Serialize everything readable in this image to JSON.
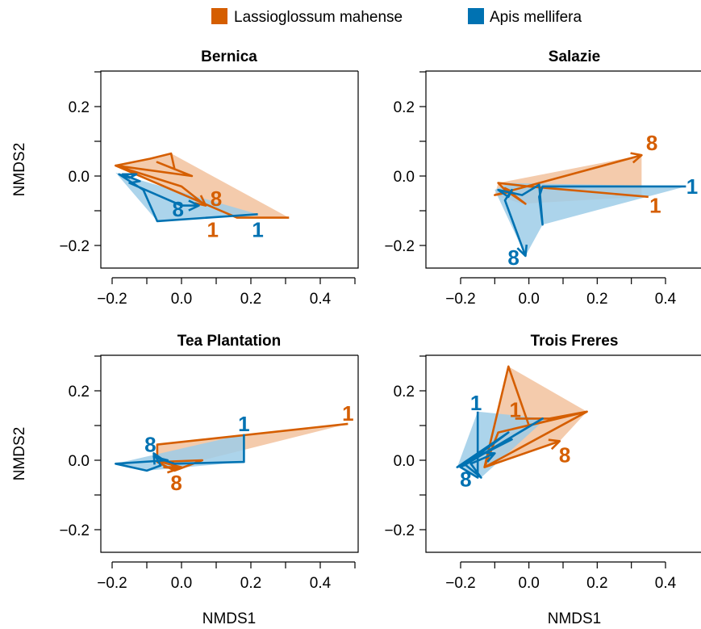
{
  "colors": {
    "lassioglossum": "#D55E00",
    "apis": "#0072B2",
    "lassioglossum_fill": "#F2C29E",
    "apis_fill": "#9ECDE8"
  },
  "legend": [
    {
      "name": "Lassioglossum mahense",
      "color_key": "lassioglossum"
    },
    {
      "name": "Apis mellifera",
      "color_key": "apis"
    }
  ],
  "chart_data": [
    {
      "type": "line",
      "title": "Bernica",
      "xlabel": "",
      "ylabel": "NMDS2",
      "xlim": [
        -0.22,
        0.48
      ],
      "ylim": [
        -0.27,
        0.31
      ],
      "xticks": [
        "-0.2",
        "0.0",
        "0.2",
        "0.4"
      ],
      "yticks": [
        "-0.2",
        "0.0",
        "0.2"
      ],
      "series": [
        {
          "color_key": "lassioglossum",
          "hull": [
            [
              -0.19,
              0.03
            ],
            [
              -0.03,
              0.065
            ],
            [
              0.31,
              -0.12
            ],
            [
              0.16,
              -0.12
            ]
          ],
          "path": [
            [
              0.31,
              -0.12
            ],
            [
              0.16,
              -0.12
            ],
            [
              -0.19,
              0.03
            ],
            [
              -0.09,
              0.05
            ],
            [
              -0.03,
              0.065
            ],
            [
              -0.02,
              0.02
            ],
            [
              -0.07,
              0.04
            ],
            [
              0.03,
              0.0
            ],
            [
              -0.19,
              0.03
            ],
            [
              0.0,
              -0.03
            ],
            [
              0.07,
              -0.085
            ]
          ],
          "labels": [
            {
              "text": "1",
              "x": 0.09,
              "y": -0.155
            },
            {
              "text": "8",
              "x": 0.1,
              "y": -0.065
            }
          ]
        },
        {
          "color_key": "apis",
          "hull": [
            [
              -0.19,
              0.01
            ],
            [
              -0.16,
              0.0
            ],
            [
              0.22,
              -0.11
            ],
            [
              -0.07,
              -0.13
            ]
          ],
          "path": [
            [
              0.22,
              -0.11
            ],
            [
              -0.07,
              -0.13
            ],
            [
              -0.11,
              -0.04
            ],
            [
              -0.18,
              0.005
            ],
            [
              -0.15,
              -0.005
            ],
            [
              -0.13,
              0.005
            ],
            [
              -0.17,
              0.005
            ],
            [
              -0.12,
              -0.015
            ],
            [
              -0.15,
              -0.02
            ],
            [
              0.0,
              -0.085
            ],
            [
              0.05,
              -0.085
            ]
          ],
          "labels": [
            {
              "text": "1",
              "x": 0.22,
              "y": -0.155
            },
            {
              "text": "8",
              "x": -0.01,
              "y": -0.095
            }
          ]
        }
      ]
    },
    {
      "type": "line",
      "title": "Salazie",
      "xlabel": "",
      "ylabel": "",
      "xlim": [
        -0.22,
        0.48
      ],
      "ylim": [
        -0.27,
        0.31
      ],
      "xticks": [
        "-0.2",
        "0.0",
        "0.2",
        "0.4"
      ],
      "yticks": [
        "-0.2",
        "0.0",
        "0.2"
      ],
      "series": [
        {
          "color_key": "lassioglossum",
          "hull": [
            [
              -0.09,
              -0.02
            ],
            [
              0.33,
              0.06
            ],
            [
              0.33,
              -0.06
            ],
            [
              -0.02,
              -0.08
            ],
            [
              -0.1,
              -0.055
            ]
          ],
          "path": [
            [
              0.35,
              -0.06
            ],
            [
              0.0,
              -0.03
            ],
            [
              -0.09,
              -0.02
            ],
            [
              -0.07,
              -0.04
            ],
            [
              -0.01,
              -0.08
            ],
            [
              -0.07,
              -0.035
            ],
            [
              -0.05,
              -0.045
            ],
            [
              -0.1,
              -0.055
            ],
            [
              0.33,
              0.06
            ]
          ],
          "labels": [
            {
              "text": "1",
              "x": 0.37,
              "y": -0.085
            },
            {
              "text": "8",
              "x": 0.36,
              "y": 0.095
            }
          ]
        },
        {
          "color_key": "apis",
          "hull": [
            [
              -0.1,
              -0.04
            ],
            [
              -0.06,
              -0.02
            ],
            [
              0.46,
              -0.03
            ],
            [
              0.04,
              -0.14
            ],
            [
              -0.01,
              -0.23
            ]
          ],
          "path": [
            [
              0.46,
              -0.03
            ],
            [
              0.04,
              -0.03
            ],
            [
              0.03,
              -0.06
            ],
            [
              0.04,
              -0.14
            ],
            [
              0.03,
              -0.025
            ],
            [
              -0.02,
              -0.055
            ],
            [
              -0.09,
              -0.04
            ],
            [
              -0.06,
              -0.06
            ],
            [
              -0.05,
              -0.04
            ],
            [
              -0.07,
              -0.07
            ],
            [
              -0.01,
              -0.23
            ]
          ],
          "labels": [
            {
              "text": "1",
              "x": 0.49,
              "y": -0.03
            },
            {
              "text": "8",
              "x": -0.045,
              "y": -0.235
            }
          ]
        }
      ]
    },
    {
      "type": "line",
      "title": "Tea Plantation",
      "xlabel": "NMDS1",
      "ylabel": "NMDS2",
      "xlim": [
        -0.22,
        0.48
      ],
      "ylim": [
        -0.27,
        0.31
      ],
      "xticks": [
        "-0.2",
        "0.0",
        "0.2",
        "0.4"
      ],
      "yticks": [
        "-0.2",
        "0.0",
        "0.2"
      ],
      "series": [
        {
          "color_key": "lassioglossum",
          "hull": [
            [
              -0.07,
              0.045
            ],
            [
              0.48,
              0.105
            ],
            [
              0.06,
              0.0
            ],
            [
              -0.02,
              -0.03
            ],
            [
              -0.07,
              -0.005
            ]
          ],
          "path": [
            [
              0.48,
              0.105
            ],
            [
              -0.07,
              0.045
            ],
            [
              -0.07,
              -0.005
            ],
            [
              -0.02,
              -0.03
            ],
            [
              0.06,
              0.0
            ],
            [
              -0.06,
              -0.005
            ],
            [
              0.0,
              -0.02
            ],
            [
              -0.05,
              -0.02
            ],
            [
              -0.01,
              -0.025
            ]
          ],
          "labels": [
            {
              "text": "1",
              "x": 0.48,
              "y": 0.135
            },
            {
              "text": "8",
              "x": -0.015,
              "y": -0.065
            }
          ]
        },
        {
          "color_key": "apis",
          "hull": [
            [
              -0.19,
              -0.01
            ],
            [
              0.18,
              0.075
            ],
            [
              0.18,
              -0.005
            ],
            [
              -0.1,
              -0.03
            ]
          ],
          "path": [
            [
              0.18,
              0.075
            ],
            [
              0.18,
              -0.005
            ],
            [
              -0.02,
              -0.01
            ],
            [
              -0.08,
              0.01
            ],
            [
              -0.04,
              0.0
            ],
            [
              -0.19,
              -0.01
            ],
            [
              -0.1,
              -0.03
            ],
            [
              -0.06,
              -0.015
            ],
            [
              -0.08,
              0.02
            ]
          ],
          "labels": [
            {
              "text": "1",
              "x": 0.18,
              "y": 0.105
            },
            {
              "text": "8",
              "x": -0.09,
              "y": 0.045
            }
          ]
        }
      ]
    },
    {
      "type": "line",
      "title": "Trois Freres",
      "xlabel": "NMDS1",
      "ylabel": "",
      "xlim": [
        -0.22,
        0.48
      ],
      "ylim": [
        -0.27,
        0.31
      ],
      "xticks": [
        "-0.2",
        "0.0",
        "0.2",
        "0.4"
      ],
      "yticks": [
        "-0.2",
        "0.0",
        "0.2"
      ],
      "series": [
        {
          "color_key": "lassioglossum",
          "hull": [
            [
              -0.06,
              0.27
            ],
            [
              0.17,
              0.14
            ],
            [
              0.09,
              0.055
            ],
            [
              -0.13,
              -0.02
            ]
          ],
          "path": [
            [
              -0.04,
              0.12
            ],
            [
              0.06,
              0.12
            ],
            [
              0.17,
              0.14
            ],
            [
              0.0,
              0.1
            ],
            [
              -0.06,
              0.27
            ],
            [
              -0.13,
              -0.02
            ],
            [
              -0.09,
              0.08
            ],
            [
              0.17,
              0.14
            ],
            [
              -0.13,
              -0.02
            ],
            [
              0.09,
              0.055
            ]
          ],
          "labels": [
            {
              "text": "1",
              "x": -0.04,
              "y": 0.145
            },
            {
              "text": "8",
              "x": 0.105,
              "y": 0.015
            }
          ]
        },
        {
          "color_key": "apis",
          "hull": [
            [
              -0.21,
              -0.02
            ],
            [
              -0.15,
              0.14
            ],
            [
              0.05,
              0.12
            ],
            [
              -0.14,
              -0.05
            ]
          ],
          "path": [
            [
              -0.15,
              0.14
            ],
            [
              -0.15,
              -0.05
            ],
            [
              -0.2,
              -0.02
            ],
            [
              0.04,
              0.12
            ],
            [
              -0.19,
              -0.015
            ],
            [
              -0.06,
              0.08
            ],
            [
              -0.21,
              -0.02
            ],
            [
              -0.05,
              0.06
            ],
            [
              -0.19,
              -0.01
            ],
            [
              -0.14,
              -0.05
            ],
            [
              -0.17,
              -0.01
            ],
            [
              -0.1,
              0.02
            ]
          ],
          "labels": [
            {
              "text": "1",
              "x": -0.155,
              "y": 0.165
            },
            {
              "text": "8",
              "x": -0.185,
              "y": -0.055
            }
          ]
        }
      ]
    }
  ]
}
